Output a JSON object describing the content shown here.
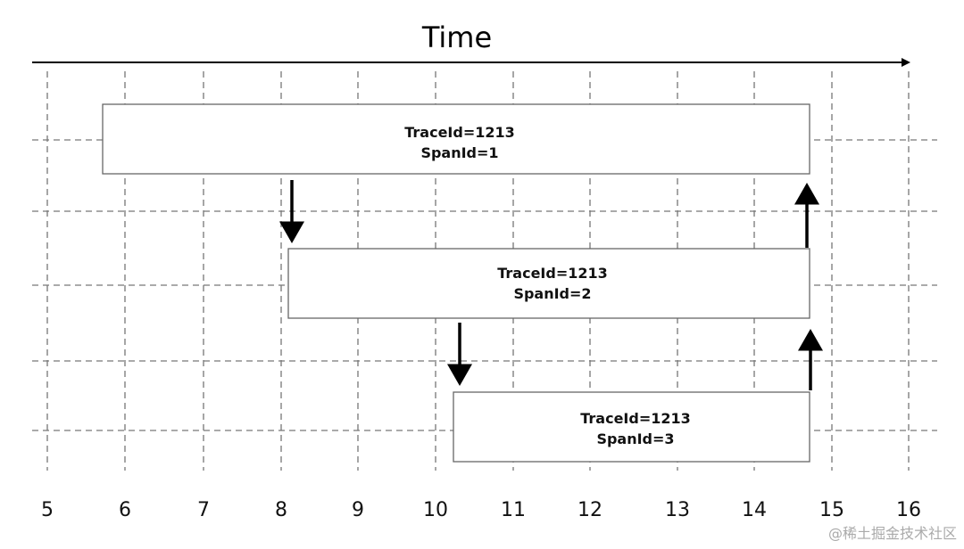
{
  "axis": {
    "title": "Time",
    "labels": [
      "5",
      "6",
      "7",
      "8",
      "9",
      "10",
      "11",
      "12",
      "13",
      "14",
      "15",
      "16"
    ]
  },
  "spans": [
    {
      "trace": "TraceId=1213",
      "span": "SpanId=1"
    },
    {
      "trace": "TraceId=1213",
      "span": "SpanId=2"
    },
    {
      "trace": "TraceId=1213",
      "span": "SpanId=3"
    }
  ],
  "watermark": "@稀土掘金技术社区"
}
